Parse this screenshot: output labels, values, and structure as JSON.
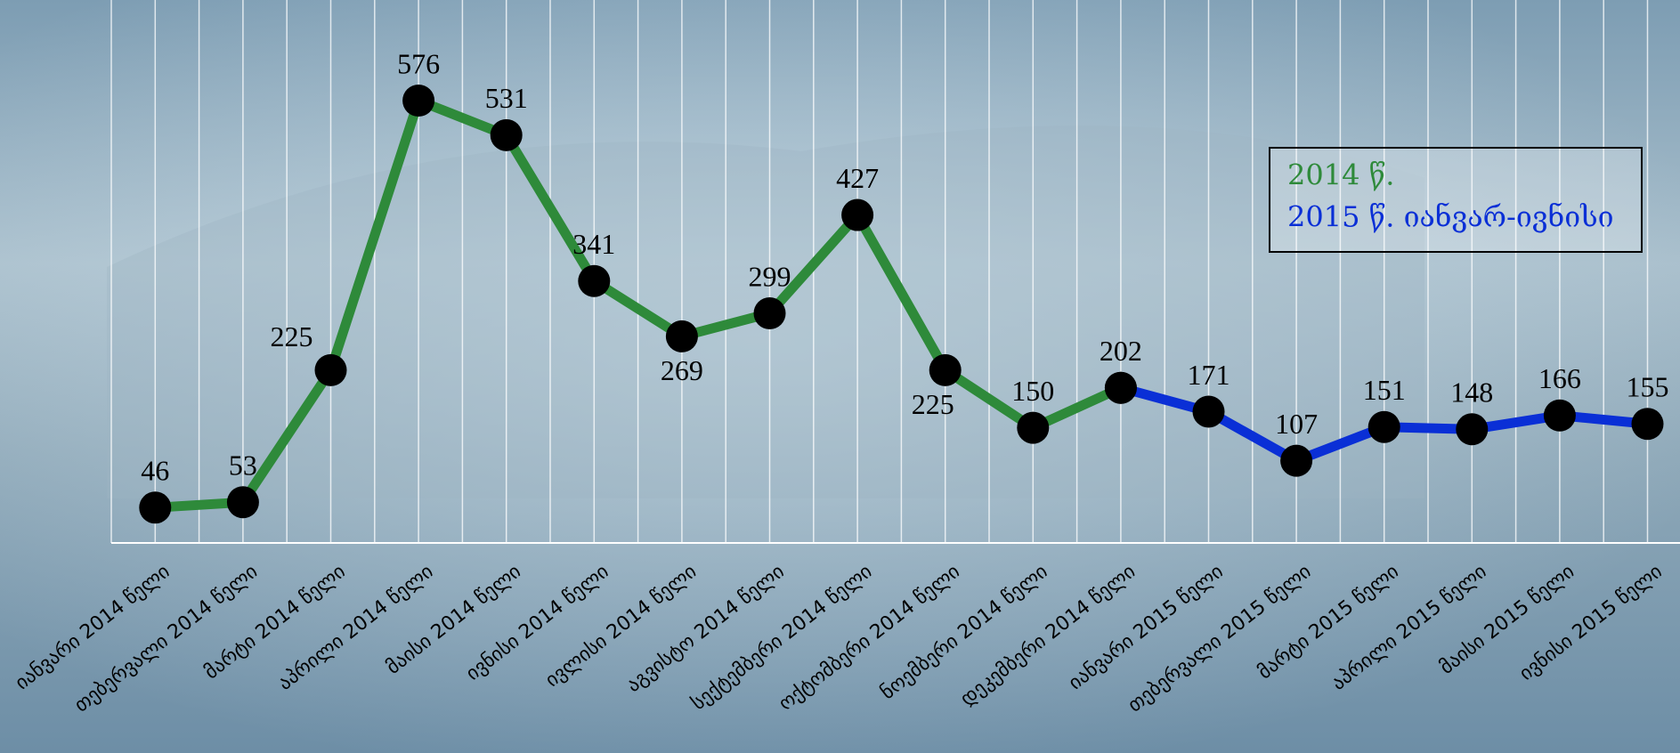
{
  "chart_data": {
    "type": "line",
    "categories": [
      "იანვარი 2014 წელი",
      "თებერვალი 2014 წელი",
      "მარტი 2014 წელი",
      "აპრილი 2014 წელი",
      "მაისი 2014 წელი",
      "ივნისი 2014 წელი",
      "ივლისი 2014 წელი",
      "აგვისტო 2014 წელი",
      "სექტემბერი 2014 წელი",
      "ოქტომბერი 2014 წელი",
      "ნოემბერი 2014 წელი",
      "დეკემბერი 2014 წელი",
      "იანვარი 2015 წელი",
      "თებერვალი 2015 წელი",
      "მარტი 2015 წელი",
      "აპრილი 2015 წელი",
      "მაისი 2015 წელი",
      "ივნისი 2015 წელი"
    ],
    "series": [
      {
        "name": "2014 წ.",
        "color": "#2e8a3a",
        "values": [
          46,
          53,
          225,
          576,
          531,
          341,
          269,
          299,
          427,
          225,
          150,
          202,
          null,
          null,
          null,
          null,
          null,
          null
        ]
      },
      {
        "name": "2015 წ. იანვარ-ივნისი",
        "color": "#0a2fd6",
        "values": [
          null,
          null,
          null,
          null,
          null,
          null,
          null,
          null,
          null,
          null,
          null,
          202,
          171,
          107,
          151,
          148,
          166,
          155
        ]
      }
    ],
    "ylim": [
      0,
      700
    ]
  }
}
